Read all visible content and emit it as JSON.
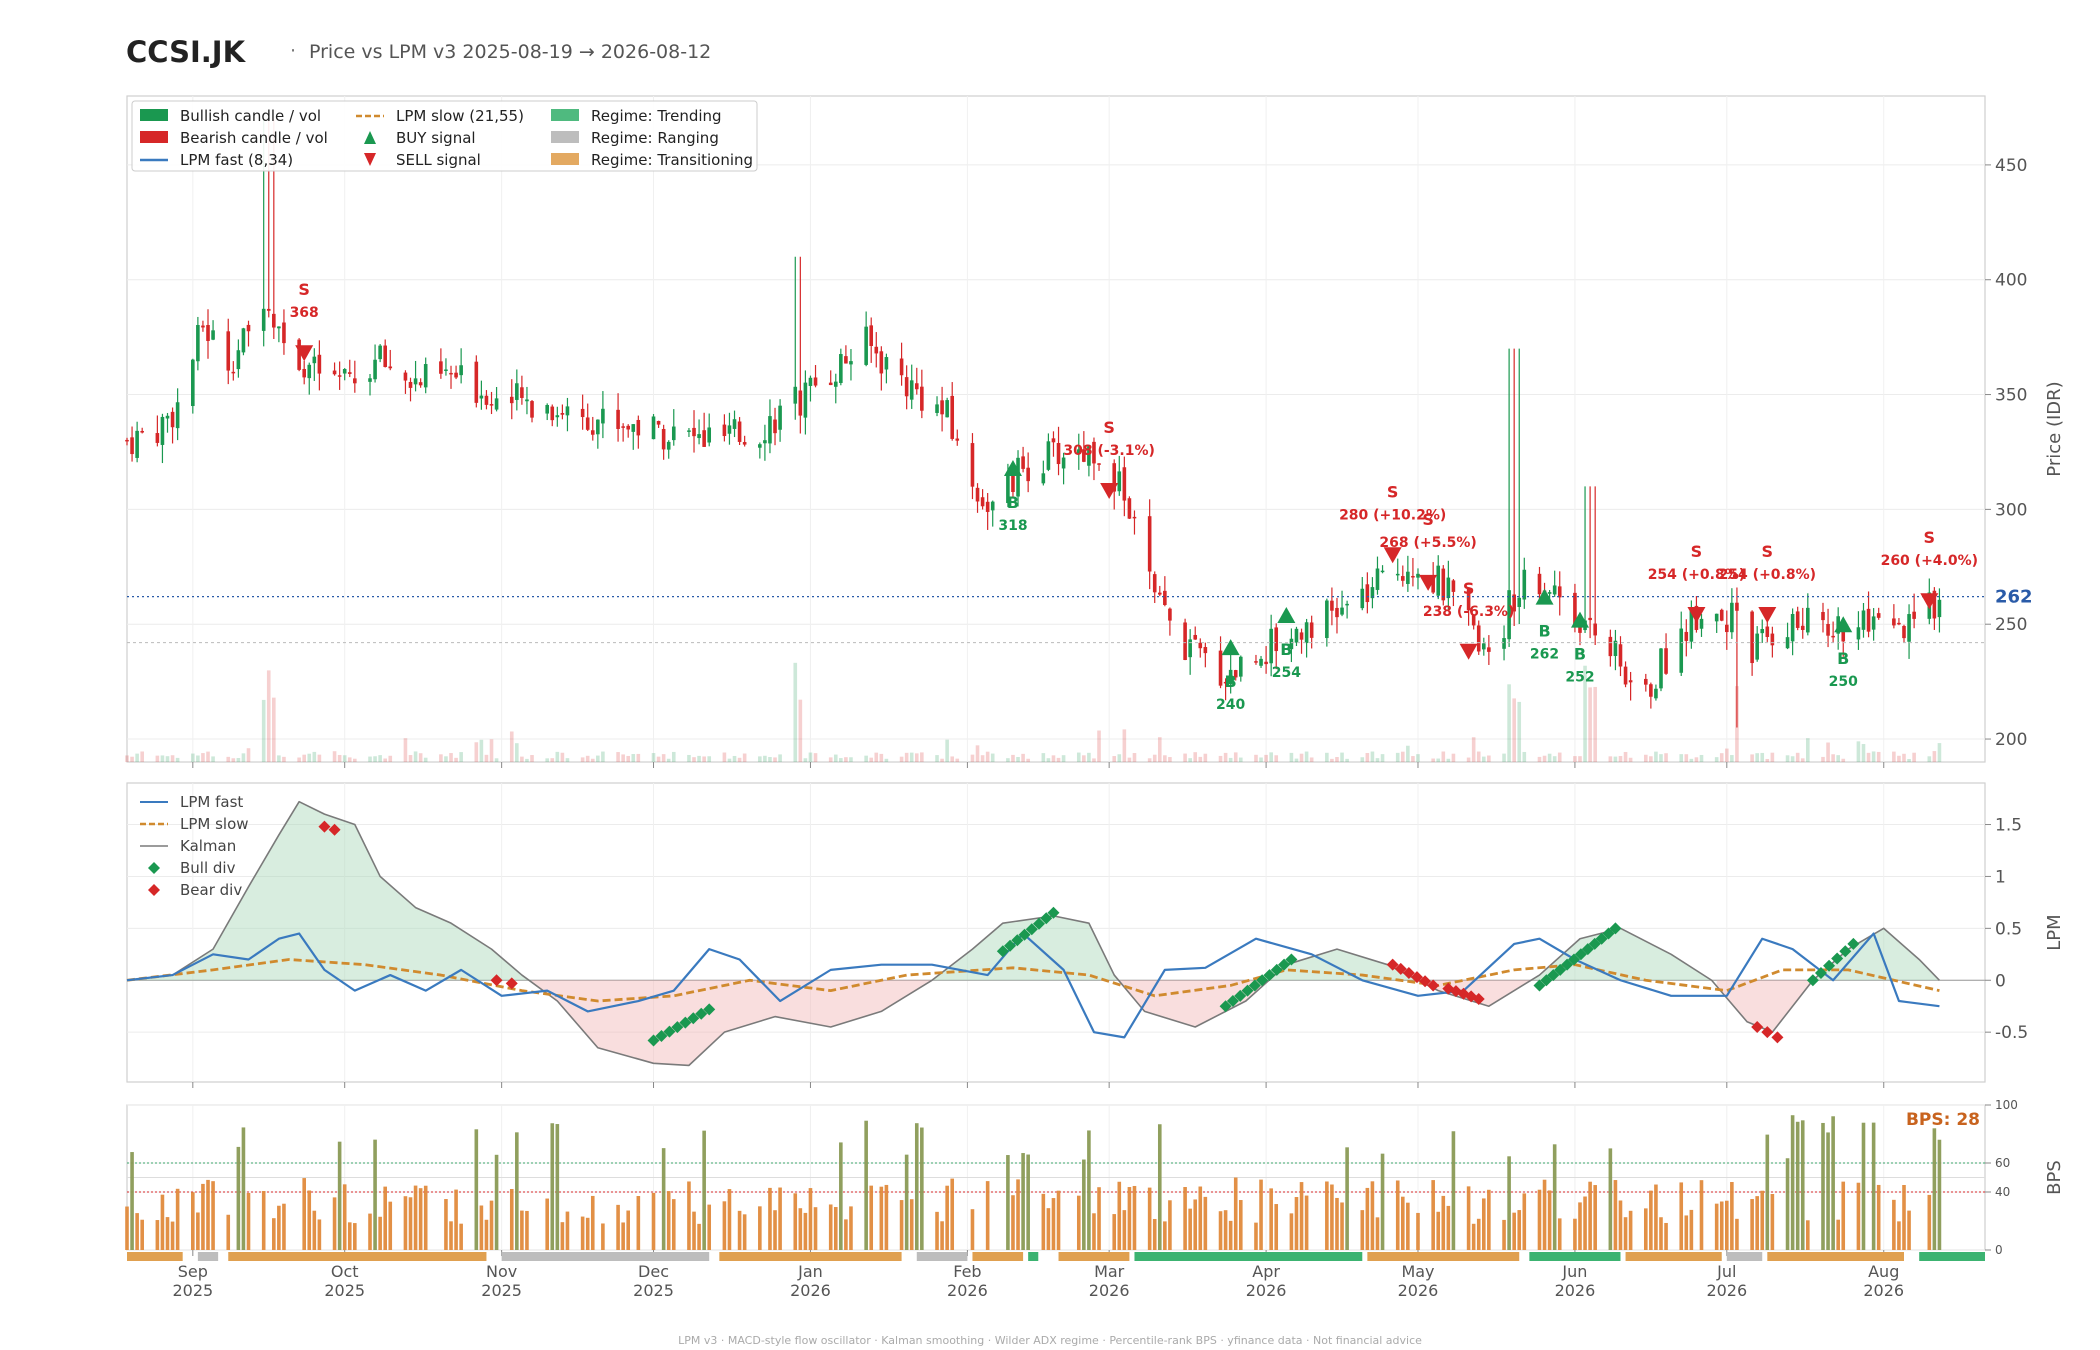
{
  "header": {
    "ticker": "CCSI.JK",
    "separator": "·",
    "subtitle": "Price vs LPM v3  2025-08-19 → 2026-08-12"
  },
  "footer": "LPM v3  ·  MACD-style flow oscillator  ·  Kalman smoothing  ·  Wilder ADX regime  ·  Percentile-rank BPS  ·  yfinance data  ·  Not financial advice",
  "colors": {
    "bull": "#1a9850",
    "bear": "#d62728",
    "fast": "#3a7abf",
    "slow": "#d08a2e",
    "kalman": "#7a7a7a",
    "trending": "#3cb371",
    "ranging": "#bdbdbd",
    "transitioning": "#e0a050",
    "bps_hi": "#8a9a55",
    "bps_lo": "#e08a3c"
  },
  "chart_data": [
    {
      "type": "candlestick",
      "name": "price",
      "ylabel": "Price (IDR)",
      "ylim": [
        190,
        480
      ],
      "yticks": [
        200,
        250,
        300,
        350,
        400,
        450
      ],
      "last_price_label": "262",
      "last_price": 262,
      "legend": [
        {
          "label": "Bullish candle / vol",
          "icon": "bull-swatch"
        },
        {
          "label": "Bearish candle / vol",
          "icon": "bear-swatch"
        },
        {
          "label": "LPM fast (8,34)",
          "icon": "fast-line"
        },
        {
          "label": "LPM slow (21,55)",
          "icon": "slow-dash"
        },
        {
          "label": "BUY signal",
          "icon": "up-triangle"
        },
        {
          "label": "SELL signal",
          "icon": "down-triangle"
        },
        {
          "label": "Regime: Trending",
          "icon": "trending-swatch"
        },
        {
          "label": "Regime: Ranging",
          "icon": "ranging-swatch"
        },
        {
          "label": "Regime: Transitioning",
          "icon": "transitioning-swatch"
        }
      ],
      "anchors": [
        [
          "2025-08-19",
          330
        ],
        [
          "2025-08-25",
          335
        ],
        [
          "2025-08-29",
          345
        ],
        [
          "2025-09-03",
          380
        ],
        [
          "2025-09-08",
          365
        ],
        [
          "2025-09-12",
          375
        ],
        [
          "2025-09-15",
          395
        ],
        [
          "2025-09-19",
          375
        ],
        [
          "2025-09-25",
          360
        ],
        [
          "2025-10-01",
          355
        ],
        [
          "2025-10-08",
          365
        ],
        [
          "2025-10-15",
          355
        ],
        [
          "2025-10-22",
          358
        ],
        [
          "2025-11-01",
          348
        ],
        [
          "2025-11-10",
          345
        ],
        [
          "2025-11-20",
          340
        ],
        [
          "2025-12-01",
          335
        ],
        [
          "2025-12-10",
          330
        ],
        [
          "2025-12-20",
          332
        ],
        [
          "2025-12-28",
          345
        ],
        [
          "2026-01-05",
          360
        ],
        [
          "2026-01-12",
          372
        ],
        [
          "2026-01-20",
          355
        ],
        [
          "2026-01-28",
          340
        ],
        [
          "2026-02-02",
          310
        ],
        [
          "2026-02-06",
          300
        ],
        [
          "2026-02-12",
          318
        ],
        [
          "2026-02-20",
          325
        ],
        [
          "2026-02-28",
          325
        ],
        [
          "2026-03-05",
          300
        ],
        [
          "2026-03-10",
          260
        ],
        [
          "2026-03-16",
          240
        ],
        [
          "2026-03-24",
          228
        ],
        [
          "2026-03-30",
          237
        ],
        [
          "2026-04-05",
          245
        ],
        [
          "2026-04-10",
          252
        ],
        [
          "2026-04-16",
          255
        ],
        [
          "2026-04-22",
          265
        ],
        [
          "2026-04-30",
          278
        ],
        [
          "2026-05-06",
          266
        ],
        [
          "2026-05-12",
          245
        ],
        [
          "2026-05-16",
          240
        ],
        [
          "2026-05-22",
          275
        ],
        [
          "2026-05-28",
          265
        ],
        [
          "2026-06-01",
          255
        ],
        [
          "2026-06-08",
          240
        ],
        [
          "2026-06-14",
          215
        ],
        [
          "2026-06-20",
          240
        ],
        [
          "2026-06-26",
          258
        ],
        [
          "2026-07-02",
          252
        ],
        [
          "2026-07-06",
          238
        ],
        [
          "2026-07-12",
          250
        ],
        [
          "2026-07-20",
          250
        ],
        [
          "2026-07-28",
          248
        ],
        [
          "2026-08-05",
          245
        ],
        [
          "2026-08-12",
          262
        ]
      ],
      "spikes": [
        {
          "date": "2025-09-16",
          "high": 470
        },
        {
          "date": "2025-12-29",
          "high": 410
        },
        {
          "date": "2026-05-20",
          "high": 370
        },
        {
          "date": "2026-06-04",
          "high": 310
        },
        {
          "date": "2026-07-04",
          "low": 205
        }
      ],
      "signals": [
        {
          "type": "S",
          "date": "2025-09-23",
          "price": 368,
          "label": "368"
        },
        {
          "type": "B",
          "date": "2026-02-10",
          "price": 318,
          "label": "318"
        },
        {
          "type": "S",
          "date": "2026-03-01",
          "price": 308,
          "label": "308 (-3.1%)"
        },
        {
          "type": "B",
          "date": "2026-03-25",
          "price": 240,
          "label": "240"
        },
        {
          "type": "B",
          "date": "2026-04-05",
          "price": 254,
          "label": "254"
        },
        {
          "type": "S",
          "date": "2026-04-26",
          "price": 280,
          "label": "280 (+10.2%)"
        },
        {
          "type": "S",
          "date": "2026-05-03",
          "price": 268,
          "label": "268 (+5.5%)"
        },
        {
          "type": "S",
          "date": "2026-05-11",
          "price": 238,
          "label": "238 (-6.3%)"
        },
        {
          "type": "B",
          "date": "2026-05-26",
          "price": 262,
          "label": "262"
        },
        {
          "type": "B",
          "date": "2026-06-02",
          "price": 252,
          "label": "252"
        },
        {
          "type": "S",
          "date": "2026-06-25",
          "price": 254,
          "label": "254 (+0.8%)"
        },
        {
          "type": "S",
          "date": "2026-07-09",
          "price": 254,
          "label": "254 (+0.8%)"
        },
        {
          "type": "B",
          "date": "2026-07-24",
          "price": 250,
          "label": "250"
        },
        {
          "type": "S",
          "date": "2026-08-10",
          "price": 260,
          "label": "260 (+4.0%)"
        }
      ]
    },
    {
      "type": "line",
      "name": "lpm",
      "ylabel": "LPM",
      "ylim": [
        -0.98,
        1.9
      ],
      "yticks": [
        -0.5,
        0.0,
        0.5,
        1.0,
        1.5
      ],
      "legend": [
        "LPM fast",
        "LPM slow",
        "Kalman",
        "Bull div",
        "Bear div"
      ],
      "kalman": [
        [
          "2025-08-19",
          0
        ],
        [
          "2025-08-28",
          0.05
        ],
        [
          "2025-09-05",
          0.3
        ],
        [
          "2025-09-12",
          0.9
        ],
        [
          "2025-09-18",
          1.4
        ],
        [
          "2025-09-22",
          1.72
        ],
        [
          "2025-09-27",
          1.6
        ],
        [
          "2025-10-03",
          1.5
        ],
        [
          "2025-10-08",
          1.0
        ],
        [
          "2025-10-15",
          0.7
        ],
        [
          "2025-10-22",
          0.55
        ],
        [
          "2025-10-30",
          0.3
        ],
        [
          "2025-11-05",
          0.05
        ],
        [
          "2025-11-12",
          -0.2
        ],
        [
          "2025-11-20",
          -0.65
        ],
        [
          "2025-12-01",
          -0.8
        ],
        [
          "2025-12-08",
          -0.82
        ],
        [
          "2025-12-15",
          -0.5
        ],
        [
          "2025-12-25",
          -0.35
        ],
        [
          "2026-01-05",
          -0.45
        ],
        [
          "2026-01-15",
          -0.3
        ],
        [
          "2026-01-25",
          0.0
        ],
        [
          "2026-02-02",
          0.3
        ],
        [
          "2026-02-08",
          0.55
        ],
        [
          "2026-02-18",
          0.62
        ],
        [
          "2026-02-25",
          0.55
        ],
        [
          "2026-03-02",
          0.05
        ],
        [
          "2026-03-08",
          -0.3
        ],
        [
          "2026-03-18",
          -0.45
        ],
        [
          "2026-03-28",
          -0.2
        ],
        [
          "2026-04-05",
          0.15
        ],
        [
          "2026-04-15",
          0.3
        ],
        [
          "2026-04-25",
          0.15
        ],
        [
          "2026-05-05",
          -0.1
        ],
        [
          "2026-05-15",
          -0.25
        ],
        [
          "2026-05-25",
          0.05
        ],
        [
          "2026-06-02",
          0.4
        ],
        [
          "2026-06-10",
          0.5
        ],
        [
          "2026-06-20",
          0.25
        ],
        [
          "2026-06-28",
          0.0
        ],
        [
          "2026-07-05",
          -0.4
        ],
        [
          "2026-07-10",
          -0.5
        ],
        [
          "2026-07-18",
          0.0
        ],
        [
          "2026-07-25",
          0.3
        ],
        [
          "2026-08-01",
          0.5
        ],
        [
          "2026-08-08",
          0.2
        ],
        [
          "2026-08-12",
          0.0
        ]
      ],
      "fast": [
        [
          "2025-08-19",
          0
        ],
        [
          "2025-08-28",
          0.05
        ],
        [
          "2025-09-05",
          0.25
        ],
        [
          "2025-09-12",
          0.2
        ],
        [
          "2025-09-18",
          0.4
        ],
        [
          "2025-09-22",
          0.45
        ],
        [
          "2025-09-27",
          0.1
        ],
        [
          "2025-10-03",
          -0.1
        ],
        [
          "2025-10-10",
          0.05
        ],
        [
          "2025-10-17",
          -0.1
        ],
        [
          "2025-10-24",
          0.1
        ],
        [
          "2025-11-01",
          -0.15
        ],
        [
          "2025-11-10",
          -0.1
        ],
        [
          "2025-11-18",
          -0.3
        ],
        [
          "2025-11-28",
          -0.2
        ],
        [
          "2025-12-05",
          -0.1
        ],
        [
          "2025-12-12",
          0.3
        ],
        [
          "2025-12-18",
          0.2
        ],
        [
          "2025-12-26",
          -0.2
        ],
        [
          "2026-01-05",
          0.1
        ],
        [
          "2026-01-15",
          0.15
        ],
        [
          "2026-01-25",
          0.15
        ],
        [
          "2026-02-05",
          0.05
        ],
        [
          "2026-02-12",
          0.45
        ],
        [
          "2026-02-20",
          0.1
        ],
        [
          "2026-02-26",
          -0.5
        ],
        [
          "2026-03-04",
          -0.55
        ],
        [
          "2026-03-12",
          0.1
        ],
        [
          "2026-03-20",
          0.12
        ],
        [
          "2026-03-30",
          0.4
        ],
        [
          "2026-04-10",
          0.25
        ],
        [
          "2026-04-20",
          0.0
        ],
        [
          "2026-05-01",
          -0.15
        ],
        [
          "2026-05-10",
          -0.1
        ],
        [
          "2026-05-20",
          0.35
        ],
        [
          "2026-05-25",
          0.4
        ],
        [
          "2026-06-01",
          0.2
        ],
        [
          "2026-06-10",
          0.0
        ],
        [
          "2026-06-20",
          -0.15
        ],
        [
          "2026-07-01",
          -0.15
        ],
        [
          "2026-07-08",
          0.4
        ],
        [
          "2026-07-14",
          0.3
        ],
        [
          "2026-07-22",
          0.0
        ],
        [
          "2026-07-30",
          0.45
        ],
        [
          "2026-08-04",
          -0.2
        ],
        [
          "2026-08-12",
          -0.25
        ]
      ],
      "slow": [
        [
          "2025-08-19",
          0
        ],
        [
          "2025-09-05",
          0.1
        ],
        [
          "2025-09-20",
          0.2
        ],
        [
          "2025-10-05",
          0.15
        ],
        [
          "2025-10-20",
          0.05
        ],
        [
          "2025-11-05",
          -0.1
        ],
        [
          "2025-11-20",
          -0.2
        ],
        [
          "2025-12-05",
          -0.15
        ],
        [
          "2025-12-20",
          0.0
        ],
        [
          "2026-01-05",
          -0.1
        ],
        [
          "2026-01-20",
          0.05
        ],
        [
          "2026-02-10",
          0.12
        ],
        [
          "2026-02-25",
          0.05
        ],
        [
          "2026-03-10",
          -0.15
        ],
        [
          "2026-03-25",
          -0.05
        ],
        [
          "2026-04-05",
          0.1
        ],
        [
          "2026-04-20",
          0.05
        ],
        [
          "2026-05-05",
          -0.05
        ],
        [
          "2026-05-20",
          0.1
        ],
        [
          "2026-06-01",
          0.15
        ],
        [
          "2026-06-15",
          0.0
        ],
        [
          "2026-07-01",
          -0.1
        ],
        [
          "2026-07-12",
          0.1
        ],
        [
          "2026-07-25",
          0.1
        ],
        [
          "2026-08-12",
          -0.1
        ]
      ],
      "bull_div": [
        {
          "start": "2025-12-01",
          "end": "2025-12-12",
          "y0": -0.58,
          "y1": -0.28
        },
        {
          "start": "2026-02-08",
          "end": "2026-02-18",
          "y0": 0.28,
          "y1": 0.65
        },
        {
          "start": "2026-03-24",
          "end": "2026-04-06",
          "y0": -0.25,
          "y1": 0.2
        },
        {
          "start": "2026-05-25",
          "end": "2026-06-09",
          "y0": -0.05,
          "y1": 0.5
        },
        {
          "start": "2026-07-18",
          "end": "2026-07-26",
          "y0": 0.0,
          "y1": 0.35
        }
      ],
      "bear_div": [
        {
          "start": "2025-09-27",
          "end": "2025-09-29",
          "y0": 1.48,
          "y1": 1.45
        },
        {
          "start": "2025-10-31",
          "end": "2025-11-03",
          "y0": 0.0,
          "y1": -0.03
        },
        {
          "start": "2026-04-26",
          "end": "2026-05-04",
          "y0": 0.15,
          "y1": -0.05
        },
        {
          "start": "2026-05-07",
          "end": "2026-05-13",
          "y0": -0.08,
          "y1": -0.18
        },
        {
          "start": "2026-07-07",
          "end": "2026-07-11",
          "y0": -0.45,
          "y1": -0.55
        }
      ]
    },
    {
      "type": "bar",
      "name": "bps",
      "ylabel": "BPS",
      "ylim": [
        0,
        100
      ],
      "yticks": [
        0,
        40,
        60,
        100
      ],
      "thresholds": [
        40,
        60
      ],
      "current_label": "BPS: 28",
      "current": 28,
      "regimes": [
        {
          "start": "2025-08-19",
          "end": "2025-08-30",
          "regime": "Transitioning"
        },
        {
          "start": "2025-09-02",
          "end": "2025-09-06",
          "regime": "Ranging"
        },
        {
          "start": "2025-09-08",
          "end": "2025-10-29",
          "regime": "Transitioning"
        },
        {
          "start": "2025-11-01",
          "end": "2025-12-12",
          "regime": "Ranging"
        },
        {
          "start": "2025-12-14",
          "end": "2026-01-19",
          "regime": "Transitioning"
        },
        {
          "start": "2026-01-22",
          "end": "2026-02-01",
          "regime": "Ranging"
        },
        {
          "start": "2026-02-02",
          "end": "2026-02-12",
          "regime": "Transitioning"
        },
        {
          "start": "2026-02-13",
          "end": "2026-02-15",
          "regime": "Trending"
        },
        {
          "start": "2026-02-19",
          "end": "2026-03-05",
          "regime": "Transitioning"
        },
        {
          "start": "2026-03-06",
          "end": "2026-04-20",
          "regime": "Trending"
        },
        {
          "start": "2026-04-21",
          "end": "2026-05-21",
          "regime": "Transitioning"
        },
        {
          "start": "2026-05-23",
          "end": "2026-06-10",
          "regime": "Trending"
        },
        {
          "start": "2026-06-11",
          "end": "2026-06-30",
          "regime": "Transitioning"
        },
        {
          "start": "2026-07-01",
          "end": "2026-07-08",
          "regime": "Ranging"
        },
        {
          "start": "2026-07-09",
          "end": "2026-08-05",
          "regime": "Transitioning"
        },
        {
          "start": "2026-08-08",
          "end": "2026-08-21",
          "regime": "Trending"
        }
      ]
    }
  ],
  "x_axis": {
    "start": "2025-08-19",
    "end": "2026-08-21",
    "ticks": [
      {
        "date": "2025-09-01",
        "month": "Sep",
        "year": "2025"
      },
      {
        "date": "2025-10-01",
        "month": "Oct",
        "year": "2025"
      },
      {
        "date": "2025-11-01",
        "month": "Nov",
        "year": "2025"
      },
      {
        "date": "2025-12-01",
        "month": "Dec",
        "year": "2025"
      },
      {
        "date": "2026-01-01",
        "month": "Jan",
        "year": "2026"
      },
      {
        "date": "2026-02-01",
        "month": "Feb",
        "year": "2026"
      },
      {
        "date": "2026-03-01",
        "month": "Mar",
        "year": "2026"
      },
      {
        "date": "2026-04-01",
        "month": "Apr",
        "year": "2026"
      },
      {
        "date": "2026-05-01",
        "month": "May",
        "year": "2026"
      },
      {
        "date": "2026-06-01",
        "month": "Jun",
        "year": "2026"
      },
      {
        "date": "2026-07-01",
        "month": "Jul",
        "year": "2026"
      },
      {
        "date": "2026-08-01",
        "month": "Aug",
        "year": "2026"
      }
    ]
  }
}
